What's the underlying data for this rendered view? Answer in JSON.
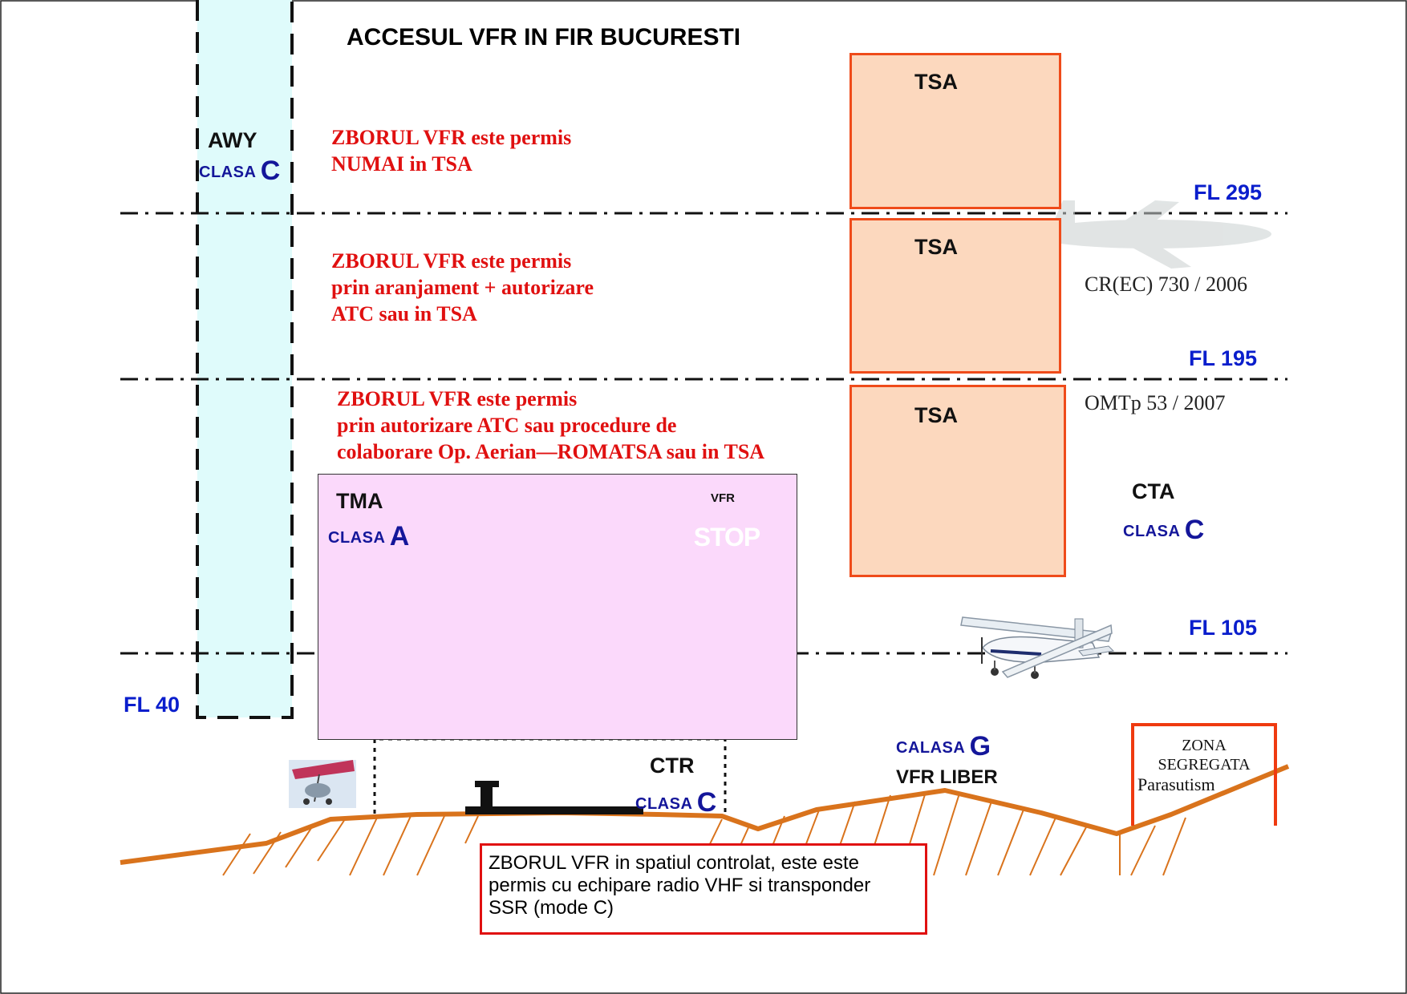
{
  "title": "ACCESUL VFR IN FIR BUCURESTI",
  "awy": {
    "label": "AWY",
    "clasa_prefix": "CLASA",
    "clasa_letter": "C"
  },
  "flight_levels": {
    "fl295": "FL 295",
    "fl195": "FL 195",
    "fl105": "FL 105",
    "fl40": "FL 40"
  },
  "zones": {
    "top": {
      "line1": "ZBORUL VFR este permis",
      "line2": "NUMAI in TSA"
    },
    "middle": {
      "line1": "ZBORUL VFR este permis",
      "line2": "prin aranjament + autorizare",
      "line3": "ATC sau in TSA"
    },
    "lower": {
      "line1": "ZBORUL VFR este permis",
      "line2": "prin autorizare ATC sau procedure de",
      "line3": "colaborare Op. Aerian—ROMATSA sau in TSA"
    }
  },
  "tsa": {
    "label": "TSA"
  },
  "references": {
    "ref1": "CR(EC) 730 / 2006",
    "ref2": "OMTp 53 / 2007"
  },
  "cta": {
    "label": "CTA",
    "clasa_prefix": "CLASA",
    "clasa_letter": "C"
  },
  "tma": {
    "label": "TMA",
    "clasa_prefix": "CLASA",
    "clasa_letter": "A"
  },
  "stop_sign": {
    "caption": "VFR",
    "text": "STOP"
  },
  "ctr": {
    "label": "CTR",
    "clasa_prefix": "CLASA",
    "clasa_letter": "C"
  },
  "class_g": {
    "clasa_prefix": "CALASA",
    "clasa_letter": "G",
    "sub": "VFR LIBER"
  },
  "zona": {
    "line1": "ZONA",
    "line2": "SEGREGATA",
    "line3": "Parasutism"
  },
  "legend": {
    "line1": "ZBORUL VFR in spatiul controlat, este este",
    "line2": "permis cu echipare radio VHF si transponder",
    "line3": "SSR (mode C)"
  },
  "colors": {
    "tsa_fill": "#fcd8be",
    "tsa_border": "#ef4b1a",
    "tma_fill": "#fbd9fb",
    "awy_fill": "#dffbfb",
    "terrain": "#d9731c",
    "fl_text": "#0a1ecc",
    "red_text": "#e01010"
  }
}
